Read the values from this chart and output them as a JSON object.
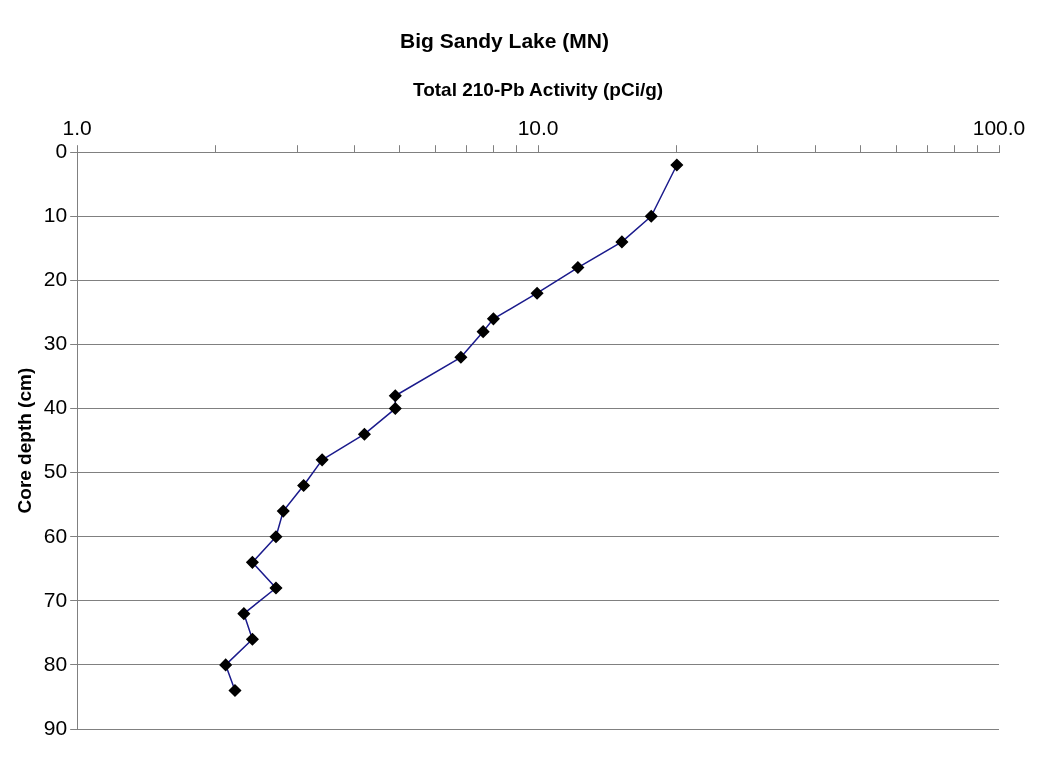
{
  "chart_data": {
    "type": "line",
    "title": "Big Sandy Lake (MN)",
    "xlabel": "Total 210-Pb Activity (pCi/g)",
    "ylabel": "Core depth (cm)",
    "log": "x",
    "xlim": [
      1,
      100
    ],
    "xticks": [
      {
        "value": 1,
        "label": "1.0"
      },
      {
        "value": 2,
        "label": null
      },
      {
        "value": 3,
        "label": null
      },
      {
        "value": 4,
        "label": null
      },
      {
        "value": 5,
        "label": null
      },
      {
        "value": 6,
        "label": null
      },
      {
        "value": 7,
        "label": null
      },
      {
        "value": 8,
        "label": null
      },
      {
        "value": 9,
        "label": null
      },
      {
        "value": 10,
        "label": "10.0"
      },
      {
        "value": 20,
        "label": null
      },
      {
        "value": 30,
        "label": null
      },
      {
        "value": 40,
        "label": null
      },
      {
        "value": 50,
        "label": null
      },
      {
        "value": 60,
        "label": null
      },
      {
        "value": 70,
        "label": null
      },
      {
        "value": 80,
        "label": null
      },
      {
        "value": 90,
        "label": null
      },
      {
        "value": 100,
        "label": "100.0"
      }
    ],
    "ylim": [
      90,
      0
    ],
    "yticks": [
      0,
      10,
      20,
      30,
      40,
      50,
      60,
      70,
      80,
      90
    ],
    "grid": "y",
    "legend": false,
    "marker": "diamond",
    "line_style": "solid",
    "series": [
      {
        "color": "#1a1a8c",
        "x": [
          20.0,
          17.6,
          15.2,
          12.2,
          9.95,
          8.0,
          7.6,
          6.8,
          4.9,
          4.9,
          4.2,
          3.4,
          3.1,
          2.8,
          2.7,
          2.4,
          2.7,
          2.3,
          2.4,
          2.1,
          2.2
        ],
        "values": [
          2,
          10,
          14,
          18,
          22,
          26,
          28,
          32,
          38,
          40,
          44,
          48,
          52,
          56,
          60,
          64,
          68,
          72,
          76,
          80,
          84
        ]
      }
    ]
  }
}
